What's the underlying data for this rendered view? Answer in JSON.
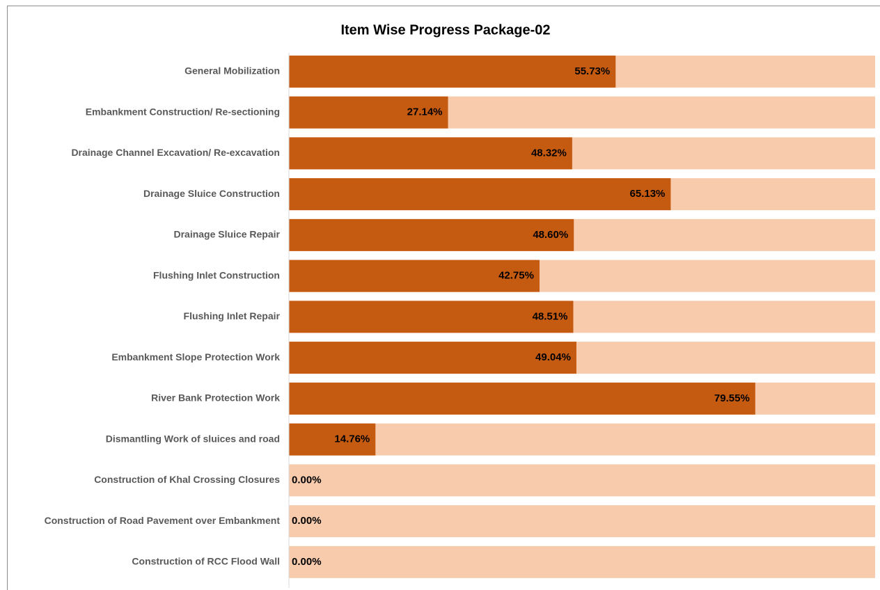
{
  "chart_data": {
    "type": "bar",
    "orientation": "horizontal",
    "title": "Item Wise Progress Package-02",
    "categories": [
      "General Mobilization",
      "Embankment Construction/ Re-sectioning",
      "Drainage Channel Excavation/ Re-excavation",
      "Drainage Sluice Construction",
      "Drainage Sluice Repair",
      "Flushing Inlet Construction",
      "Flushing Inlet Repair",
      "Embankment Slope Protection Work",
      "River Bank Protection Work",
      "Dismantling Work of sluices and road",
      "Construction of Khal Crossing Closures",
      "Construction of Road Pavement over Embankment",
      "Construction of RCC Flood Wall"
    ],
    "values": [
      55.73,
      27.14,
      48.32,
      65.13,
      48.6,
      42.75,
      48.51,
      49.04,
      79.55,
      14.76,
      0,
      0,
      0
    ],
    "value_labels": [
      "55.73%",
      "27.14%",
      "48.32%",
      "65.13%",
      "48.60%",
      "42.75%",
      "48.51%",
      "49.04%",
      "79.55%",
      "14.76%",
      "0.00%",
      "0.00%",
      "0.00%"
    ],
    "color": "#c55a11",
    "track_color": "#f8cbad",
    "xlim": [
      0,
      100
    ]
  }
}
